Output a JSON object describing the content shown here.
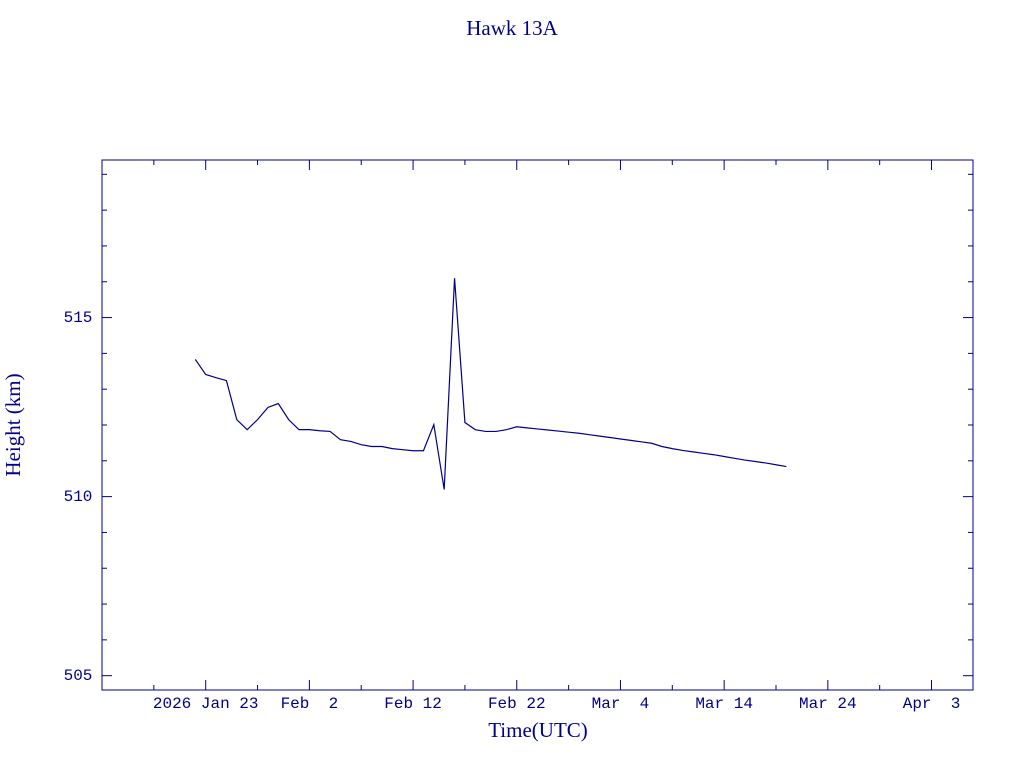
{
  "chart_data": {
    "type": "line",
    "title": "Hawk 13A",
    "x_label": "Time(UTC)",
    "y_label": "Height (km)",
    "color": "#00008b",
    "xlim": [
      "2026-01-13",
      "2026-04-07"
    ],
    "xticks": [
      {
        "value": "2026-01-23",
        "label": "2026 Jan 23"
      },
      {
        "value": "2026-02-02",
        "label": "Feb  2"
      },
      {
        "value": "2026-02-12",
        "label": "Feb 12"
      },
      {
        "value": "2026-02-22",
        "label": "Feb 22"
      },
      {
        "value": "2026-03-04",
        "label": "Mar  4"
      },
      {
        "value": "2026-03-14",
        "label": "Mar 14"
      },
      {
        "value": "2026-03-24",
        "label": "Mar 24"
      },
      {
        "value": "2026-04-03",
        "label": "Apr  3"
      }
    ],
    "ylim": [
      504.6,
      519.4
    ],
    "yticks": [
      505,
      510,
      515
    ],
    "x": [
      "2026-01-22",
      "2026-01-23",
      "2026-01-24",
      "2026-01-25",
      "2026-01-26",
      "2026-01-27",
      "2026-01-28",
      "2026-01-29",
      "2026-01-30",
      "2026-01-31",
      "2026-02-01",
      "2026-02-02",
      "2026-02-03",
      "2026-02-04",
      "2026-02-05",
      "2026-02-06",
      "2026-02-07",
      "2026-02-08",
      "2026-02-09",
      "2026-02-10",
      "2026-02-11",
      "2026-02-12",
      "2026-02-13",
      "2026-02-14",
      "2026-02-15",
      "2026-02-16",
      "2026-02-17",
      "2026-02-18",
      "2026-02-19",
      "2026-02-20",
      "2026-02-21",
      "2026-02-22",
      "2026-02-23",
      "2026-02-24",
      "2026-02-25",
      "2026-02-26",
      "2026-02-27",
      "2026-02-28",
      "2026-03-01",
      "2026-03-02",
      "2026-03-03",
      "2026-03-04",
      "2026-03-05",
      "2026-03-06",
      "2026-03-07",
      "2026-03-08",
      "2026-03-09",
      "2026-03-10",
      "2026-03-11",
      "2026-03-12",
      "2026-03-13",
      "2026-03-14",
      "2026-03-15",
      "2026-03-16",
      "2026-03-17",
      "2026-03-18",
      "2026-03-19",
      "2026-03-20"
    ],
    "values": [
      513.83,
      513.41,
      513.32,
      513.24,
      512.15,
      511.87,
      512.15,
      512.49,
      512.6,
      512.15,
      511.87,
      511.87,
      511.84,
      511.82,
      511.59,
      511.54,
      511.45,
      511.4,
      511.4,
      511.34,
      511.31,
      511.28,
      511.28,
      512.01,
      510.2,
      516.1,
      512.07,
      511.87,
      511.82,
      511.82,
      511.87,
      511.95,
      511.92,
      511.89,
      511.86,
      511.83,
      511.8,
      511.77,
      511.73,
      511.69,
      511.65,
      511.61,
      511.57,
      511.53,
      511.49,
      511.4,
      511.34,
      511.29,
      511.25,
      511.21,
      511.17,
      511.12,
      511.07,
      511.02,
      510.98,
      510.94,
      510.89,
      510.84
    ]
  }
}
